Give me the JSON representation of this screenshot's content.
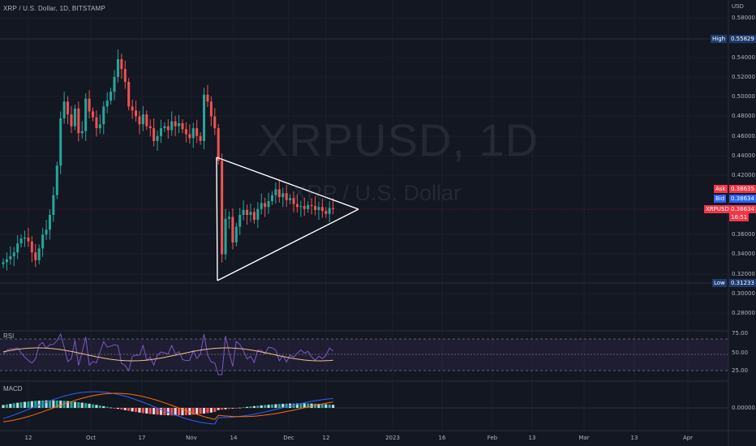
{
  "header": {
    "symbol_line": "XRP / U.S. Dollar, 1D, BITSTAMP"
  },
  "watermark": {
    "ticker": "XRPUSD, 1D",
    "name": "XRP / U.S. Dollar"
  },
  "price_axis": {
    "currency": "USD",
    "ticks": [
      "0.58000",
      "0.54000",
      "0.52000",
      "0.50000",
      "0.48000",
      "0.46000",
      "0.44000",
      "0.42000",
      "0.36000",
      "0.34000",
      "0.32000",
      "0.30000",
      "0.28000"
    ]
  },
  "tags": {
    "high": {
      "label": "High",
      "value": "0.55829"
    },
    "ask": {
      "label": "Ask",
      "value": "0.38635"
    },
    "bid": {
      "label": "Bid",
      "value": "0.38634"
    },
    "last": {
      "label": "XRPUSD",
      "value": "0.38634",
      "countdown": "16:51"
    },
    "low": {
      "label": "Low",
      "value": "0.31233"
    }
  },
  "rsi": {
    "label": "RSI",
    "ticks": [
      "75.00",
      "50.00",
      "25.00"
    ]
  },
  "macd": {
    "label": "MACD",
    "ticks": [
      "0.00000"
    ]
  },
  "time_axis": {
    "ticks": [
      "12",
      "Oct",
      "17",
      "Nov",
      "14",
      "Dec",
      "12",
      "2023",
      "16",
      "Feb",
      "13",
      "Mar",
      "13",
      "Apr"
    ]
  },
  "colors": {
    "up": "#26a69a",
    "down": "#ef5350",
    "bg": "#131722",
    "grid": "#1e222d",
    "text": "#b2b5be",
    "rsi_band": "#7e57c2",
    "rsi_line": "#7e57c2",
    "macd_line": "#2962ff",
    "signal_line": "#ff6d00",
    "tag_blue": "#1e3a6e",
    "tag_red": "#f23645"
  }
}
